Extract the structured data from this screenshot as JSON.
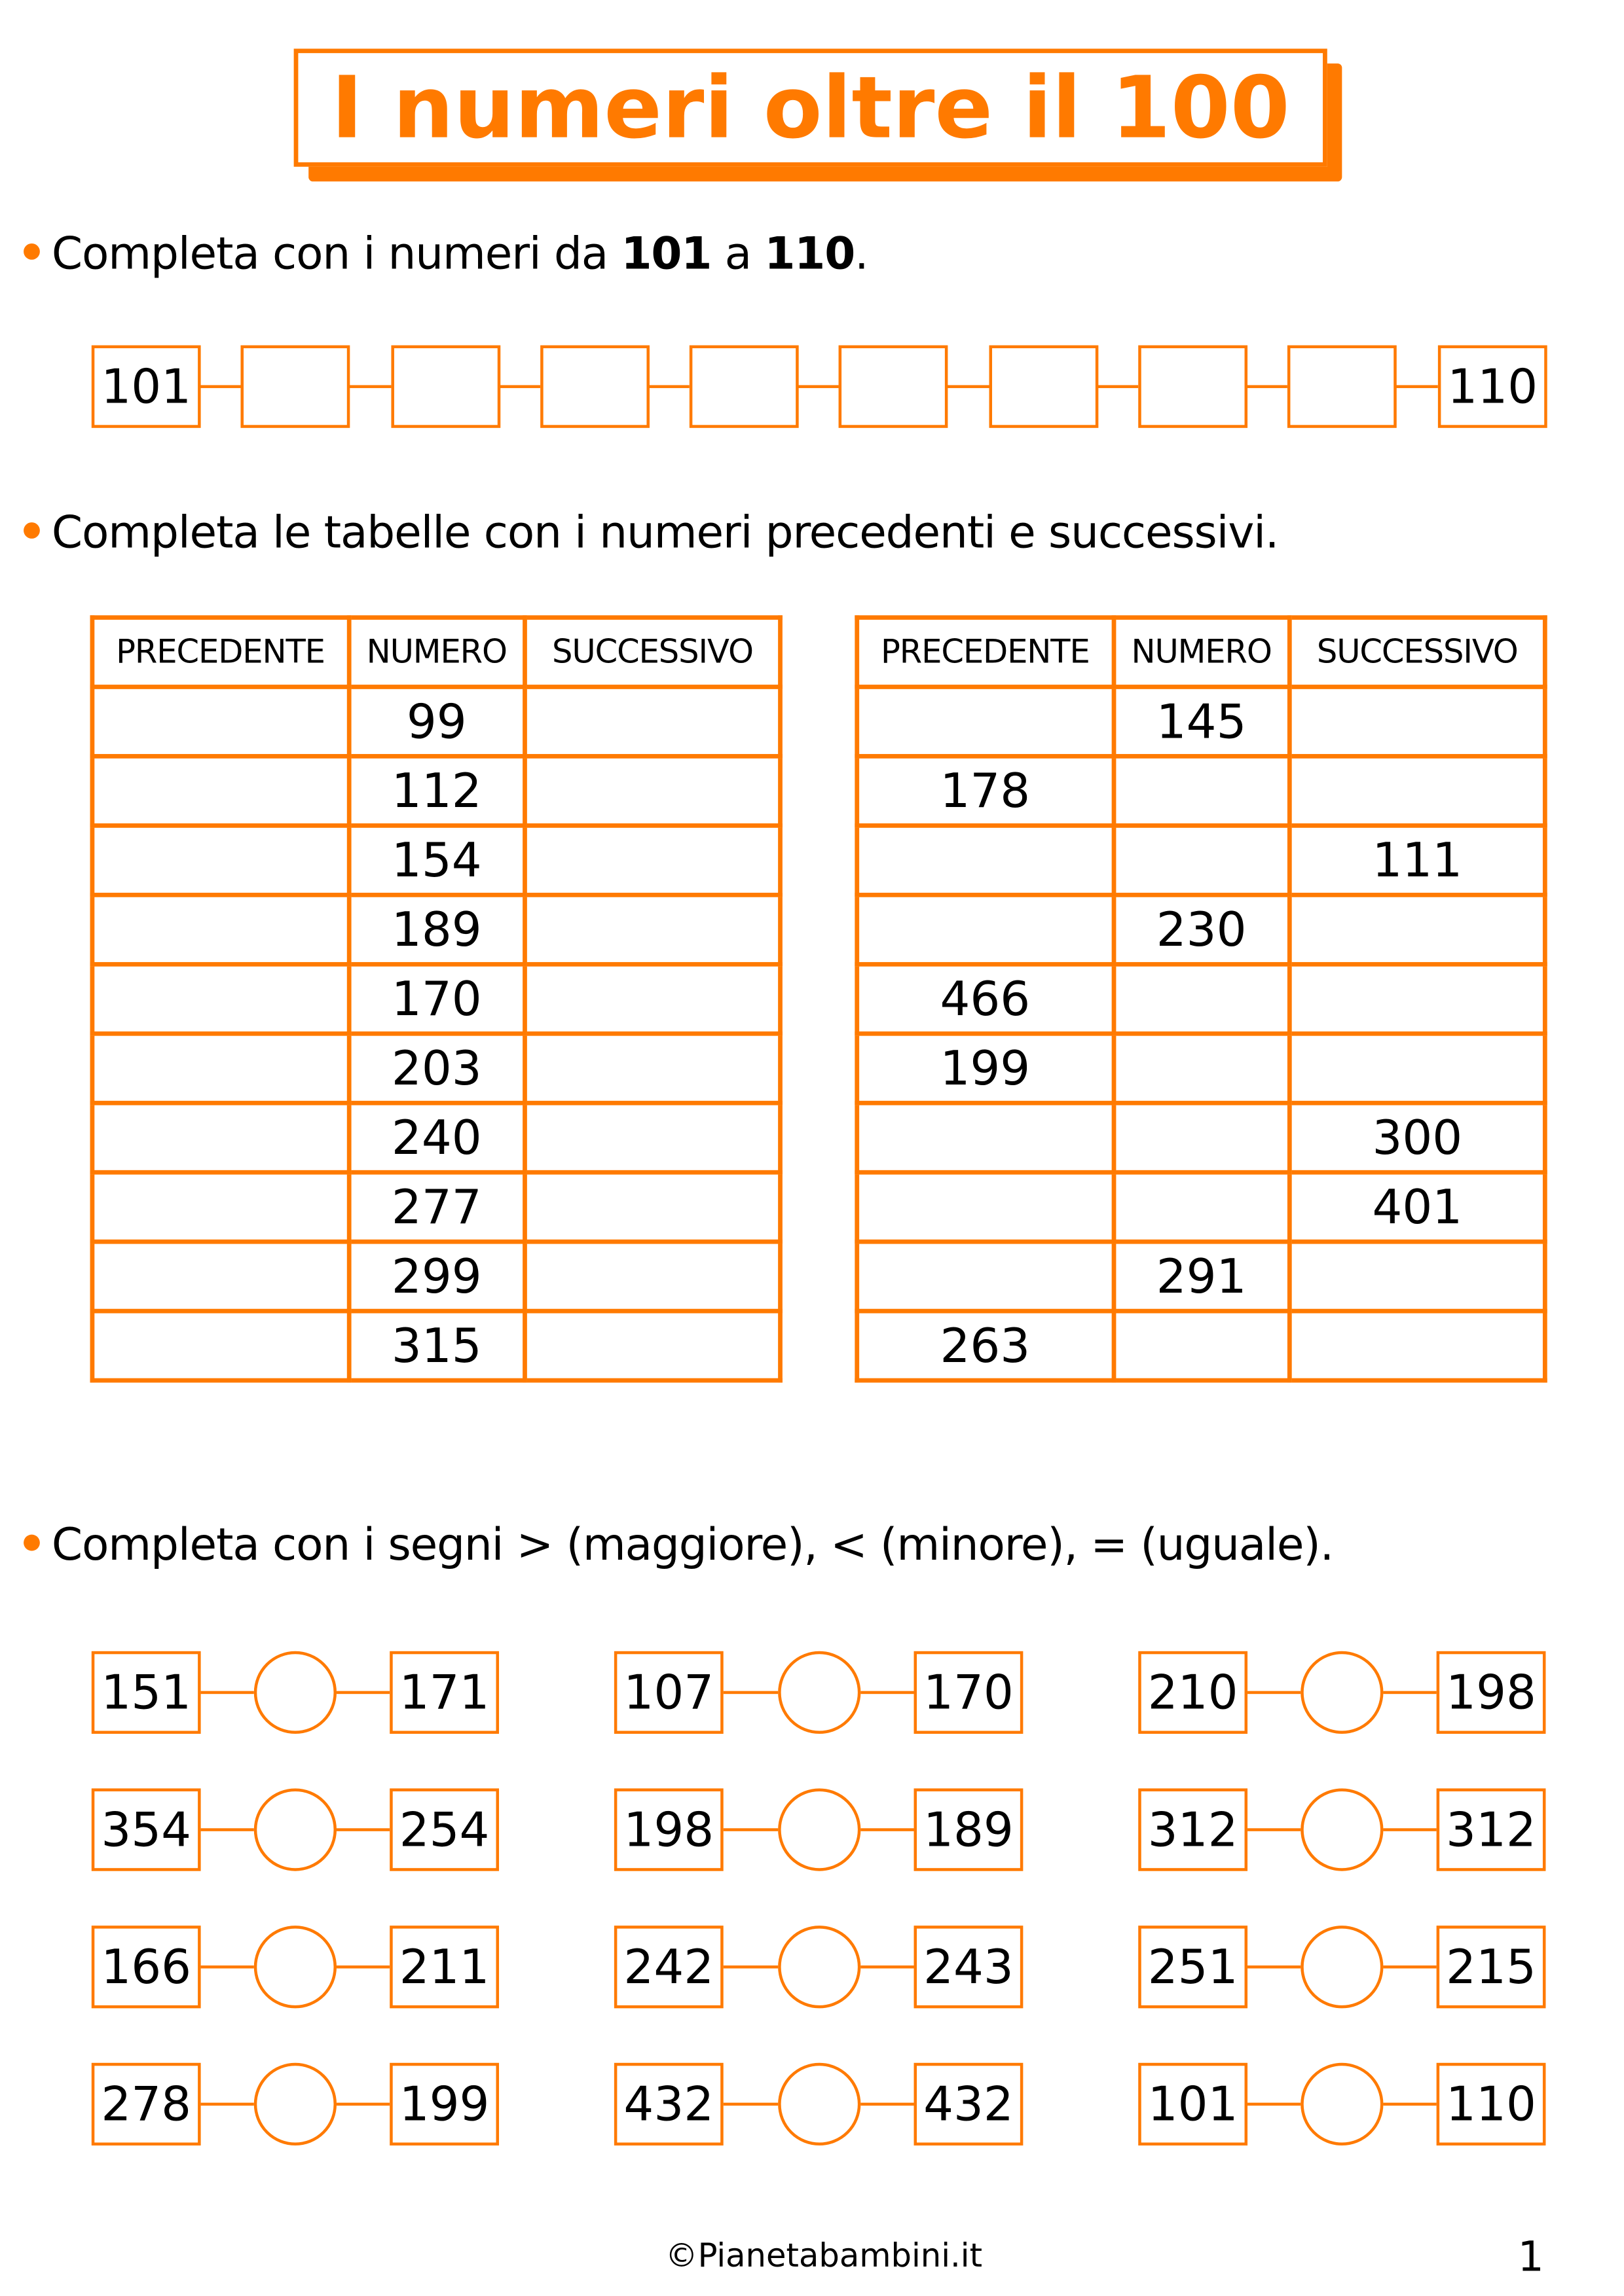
{
  "title": "I numeri oltre il 100",
  "accent_color": "#FF7A00",
  "section1": {
    "instruction_pre": "Completa con i numeri da ",
    "instruction_from": "101",
    "instruction_mid": " a ",
    "instruction_to": "110",
    "instruction_end": ".",
    "sequence": [
      "101",
      "",
      "",
      "",
      "",
      "",
      "",
      "",
      "",
      "110"
    ]
  },
  "section2": {
    "instruction": "Completa le tabelle con i numeri precedenti e successivi.",
    "headers": [
      "PRECEDENTE",
      "NUMERO",
      "SUCCESSIVO"
    ],
    "table_left": [
      [
        "",
        "99",
        ""
      ],
      [
        "",
        "112",
        ""
      ],
      [
        "",
        "154",
        ""
      ],
      [
        "",
        "189",
        ""
      ],
      [
        "",
        "170",
        ""
      ],
      [
        "",
        "203",
        ""
      ],
      [
        "",
        "240",
        ""
      ],
      [
        "",
        "277",
        ""
      ],
      [
        "",
        "299",
        ""
      ],
      [
        "",
        "315",
        ""
      ]
    ],
    "table_right": [
      [
        "",
        "145",
        ""
      ],
      [
        "178",
        "",
        ""
      ],
      [
        "",
        "",
        "111"
      ],
      [
        "",
        "230",
        ""
      ],
      [
        "466",
        "",
        ""
      ],
      [
        "199",
        "",
        ""
      ],
      [
        "",
        "",
        "300"
      ],
      [
        "",
        "",
        "401"
      ],
      [
        "",
        "291",
        ""
      ],
      [
        "263",
        "",
        ""
      ]
    ]
  },
  "section3": {
    "instruction": "Completa con i segni > (maggiore), < (minore), = (uguale).",
    "rows": [
      [
        [
          "151",
          "171"
        ],
        [
          "107",
          "170"
        ],
        [
          "210",
          "198"
        ]
      ],
      [
        [
          "354",
          "254"
        ],
        [
          "198",
          "189"
        ],
        [
          "312",
          "312"
        ]
      ],
      [
        [
          "166",
          "211"
        ],
        [
          "242",
          "243"
        ],
        [
          "251",
          "215"
        ]
      ],
      [
        [
          "278",
          "199"
        ],
        [
          "432",
          "432"
        ],
        [
          "101",
          "110"
        ]
      ]
    ]
  },
  "footer": {
    "copyright": "©Pianetabambini.it",
    "page_number": "1"
  }
}
